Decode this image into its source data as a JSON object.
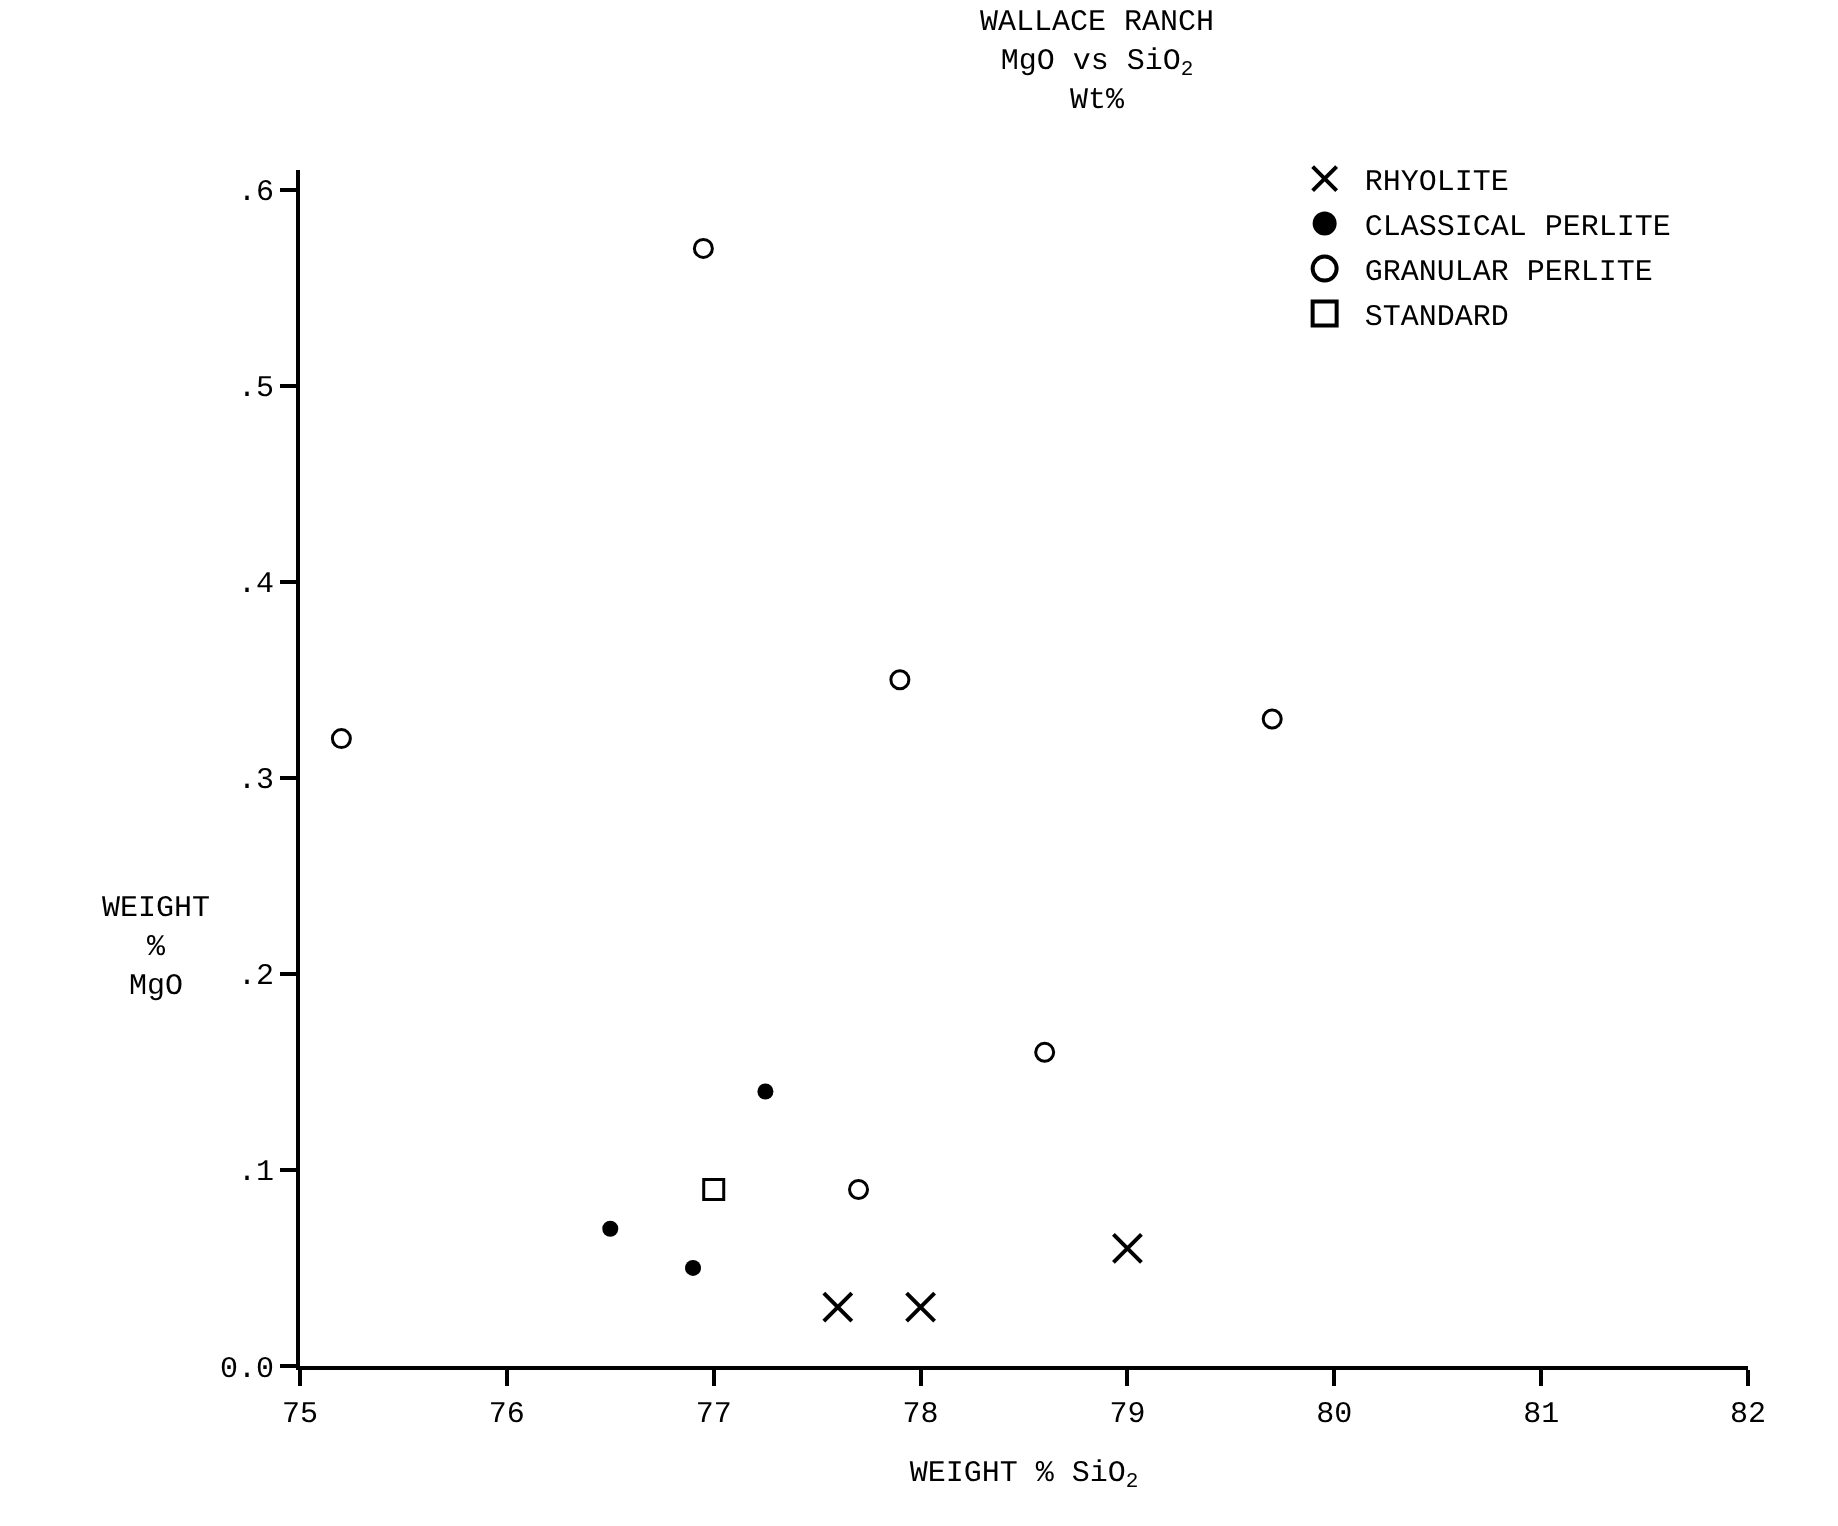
{
  "chart_data": {
    "type": "scatter",
    "title": "WALLACE RANCH",
    "subtitle": "MgO vs SiO$_{2}$\nWt%",
    "xlabel": "WEIGHT % SiO$_{2}$",
    "ylabel": "WEIGHT\n%\nMgO",
    "xlim": [
      75,
      82
    ],
    "xticks": [
      75,
      76,
      77,
      78,
      79,
      80,
      81,
      82
    ],
    "ylim": [
      0,
      0.61
    ],
    "yticks": [
      {
        "value": 0,
        "label": "0.0"
      },
      {
        "value": 0.1,
        "label": ".1"
      },
      {
        "value": 0.2,
        "label": ".2"
      },
      {
        "value": 0.3,
        "label": ".3"
      },
      {
        "value": 0.4,
        "label": ".4"
      },
      {
        "value": 0.5,
        "label": ".5"
      },
      {
        "value": 0.6,
        "label": ".6"
      }
    ],
    "legend": "top right",
    "series": [
      {
        "name": "RHYOLITE",
        "color": "#000000",
        "marker": "cross",
        "x": [
          77.6,
          78.0,
          79.0
        ],
        "values": [
          0.03,
          0.03,
          0.06
        ]
      },
      {
        "name": "CLASSICAL PERLITE",
        "color": "#000000",
        "marker": "circle",
        "x": [
          76.5,
          76.9,
          77.25
        ],
        "values": [
          0.07,
          0.05,
          0.14
        ]
      },
      {
        "name": "GRANULAR PERLITE",
        "color": "#000000",
        "marker": "circle-open",
        "x": [
          75.2,
          76.95,
          77.9,
          79.7,
          77.7,
          78.6
        ],
        "values": [
          0.32,
          0.57,
          0.35,
          0.33,
          0.09,
          0.16
        ]
      },
      {
        "name": "STANDARD",
        "color": "#000000",
        "marker": "square-open",
        "x": [
          77.0
        ],
        "values": [
          0.09
        ]
      }
    ]
  }
}
